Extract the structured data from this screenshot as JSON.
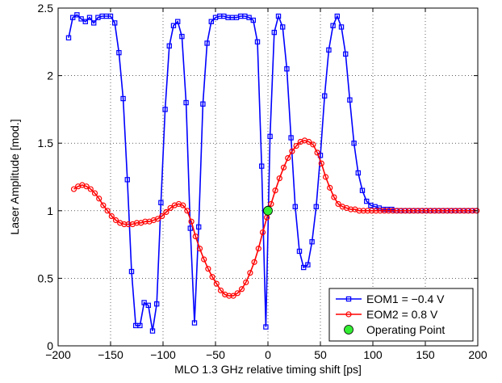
{
  "chart_data": {
    "type": "line",
    "title": "",
    "xlabel": "MLO 1.3 GHz relative timing shift [ps]",
    "ylabel": "Laser Amplitude [mod.]",
    "xlim": [
      -200,
      200
    ],
    "ylim": [
      0,
      2.5
    ],
    "xticks": [
      -200,
      -150,
      -100,
      -50,
      0,
      50,
      100,
      150,
      200
    ],
    "xtick_labels": [
      "−200",
      "−150",
      "−100",
      "−50",
      "0",
      "50",
      "100",
      "150",
      "200"
    ],
    "yticks": [
      0,
      0.5,
      1,
      1.5,
      2,
      2.5
    ],
    "ytick_labels": [
      "0",
      "0.5",
      "1",
      "1.5",
      "2",
      "2.5"
    ],
    "grid": true,
    "legend_position": "bottom-right",
    "series": [
      {
        "name": "EOM1 = −0.4 V",
        "color": "#0000ff",
        "marker": "square",
        "points": [
          [
            -190,
            2.28
          ],
          [
            -186,
            2.43
          ],
          [
            -182,
            2.45
          ],
          [
            -178,
            2.42
          ],
          [
            -174,
            2.4
          ],
          [
            -170,
            2.43
          ],
          [
            -166,
            2.39
          ],
          [
            -162,
            2.43
          ],
          [
            -158,
            2.44
          ],
          [
            -154,
            2.44
          ],
          [
            -150,
            2.44
          ],
          [
            -146,
            2.39
          ],
          [
            -142,
            2.17
          ],
          [
            -138,
            1.83
          ],
          [
            -134,
            1.23
          ],
          [
            -130,
            0.55
          ],
          [
            -126,
            0.15
          ],
          [
            -122,
            0.15
          ],
          [
            -118,
            0.32
          ],
          [
            -114,
            0.3
          ],
          [
            -110,
            0.11
          ],
          [
            -106,
            0.31
          ],
          [
            -102,
            1.06
          ],
          [
            -98,
            1.75
          ],
          [
            -94,
            2.22
          ],
          [
            -90,
            2.37
          ],
          [
            -86,
            2.4
          ],
          [
            -82,
            2.29
          ],
          [
            -78,
            1.8
          ],
          [
            -74,
            0.87
          ],
          [
            -70,
            0.17
          ],
          [
            -66,
            0.88
          ],
          [
            -62,
            1.79
          ],
          [
            -58,
            2.24
          ],
          [
            -54,
            2.4
          ],
          [
            -50,
            2.43
          ],
          [
            -46,
            2.44
          ],
          [
            -42,
            2.44
          ],
          [
            -38,
            2.43
          ],
          [
            -34,
            2.43
          ],
          [
            -30,
            2.43
          ],
          [
            -26,
            2.44
          ],
          [
            -22,
            2.44
          ],
          [
            -18,
            2.43
          ],
          [
            -14,
            2.41
          ],
          [
            -10,
            2.25
          ],
          [
            -6,
            1.33
          ],
          [
            -2,
            0.14
          ],
          [
            2,
            1.55
          ],
          [
            6,
            2.32
          ],
          [
            10,
            2.44
          ],
          [
            14,
            2.36
          ],
          [
            18,
            2.05
          ],
          [
            22,
            1.54
          ],
          [
            26,
            1.03
          ],
          [
            30,
            0.7
          ],
          [
            34,
            0.58
          ],
          [
            38,
            0.6
          ],
          [
            42,
            0.77
          ],
          [
            46,
            1.03
          ],
          [
            50,
            1.41
          ],
          [
            54,
            1.85
          ],
          [
            58,
            2.19
          ],
          [
            62,
            2.37
          ],
          [
            66,
            2.44
          ],
          [
            70,
            2.36
          ],
          [
            74,
            2.16
          ],
          [
            78,
            1.82
          ],
          [
            82,
            1.5
          ],
          [
            86,
            1.28
          ],
          [
            90,
            1.15
          ],
          [
            94,
            1.07
          ],
          [
            98,
            1.04
          ],
          [
            102,
            1.03
          ],
          [
            106,
            1.02
          ],
          [
            110,
            1.01
          ],
          [
            114,
            1.01
          ],
          [
            118,
            1.01
          ],
          [
            122,
            1.0
          ],
          [
            126,
            1.0
          ],
          [
            130,
            1.0
          ],
          [
            134,
            1.0
          ],
          [
            138,
            1.0
          ],
          [
            142,
            1.0
          ],
          [
            146,
            1.0
          ],
          [
            150,
            1.0
          ],
          [
            154,
            1.0
          ],
          [
            158,
            1.0
          ],
          [
            162,
            1.0
          ],
          [
            166,
            1.0
          ],
          [
            170,
            1.0
          ],
          [
            174,
            1.0
          ],
          [
            178,
            1.0
          ],
          [
            182,
            1.0
          ],
          [
            186,
            1.0
          ],
          [
            190,
            1.0
          ],
          [
            194,
            1.0
          ],
          [
            198,
            1.0
          ]
        ]
      },
      {
        "name": "EOM2 = 0.8 V",
        "color": "#ff0000",
        "marker": "circle",
        "points": [
          [
            -185,
            1.16
          ],
          [
            -181,
            1.18
          ],
          [
            -177,
            1.19
          ],
          [
            -173,
            1.18
          ],
          [
            -169,
            1.16
          ],
          [
            -165,
            1.13
          ],
          [
            -161,
            1.09
          ],
          [
            -157,
            1.04
          ],
          [
            -153,
            1.0
          ],
          [
            -149,
            0.96
          ],
          [
            -145,
            0.93
          ],
          [
            -141,
            0.91
          ],
          [
            -137,
            0.9
          ],
          [
            -133,
            0.9
          ],
          [
            -129,
            0.9
          ],
          [
            -125,
            0.91
          ],
          [
            -121,
            0.91
          ],
          [
            -117,
            0.92
          ],
          [
            -113,
            0.92
          ],
          [
            -109,
            0.93
          ],
          [
            -105,
            0.94
          ],
          [
            -101,
            0.96
          ],
          [
            -97,
            0.99
          ],
          [
            -93,
            1.02
          ],
          [
            -89,
            1.04
          ],
          [
            -85,
            1.05
          ],
          [
            -81,
            1.04
          ],
          [
            -77,
            1.0
          ],
          [
            -73,
            0.92
          ],
          [
            -69,
            0.81
          ],
          [
            -65,
            0.72
          ],
          [
            -61,
            0.64
          ],
          [
            -57,
            0.57
          ],
          [
            -53,
            0.51
          ],
          [
            -49,
            0.46
          ],
          [
            -45,
            0.41
          ],
          [
            -41,
            0.38
          ],
          [
            -37,
            0.37
          ],
          [
            -33,
            0.37
          ],
          [
            -29,
            0.39
          ],
          [
            -25,
            0.42
          ],
          [
            -21,
            0.47
          ],
          [
            -17,
            0.54
          ],
          [
            -13,
            0.62
          ],
          [
            -9,
            0.72
          ],
          [
            -5,
            0.84
          ],
          [
            -1,
            0.95
          ],
          [
            3,
            1.05
          ],
          [
            7,
            1.15
          ],
          [
            11,
            1.24
          ],
          [
            15,
            1.32
          ],
          [
            19,
            1.39
          ],
          [
            23,
            1.44
          ],
          [
            27,
            1.48
          ],
          [
            31,
            1.51
          ],
          [
            35,
            1.52
          ],
          [
            39,
            1.51
          ],
          [
            43,
            1.49
          ],
          [
            47,
            1.43
          ],
          [
            51,
            1.35
          ],
          [
            55,
            1.25
          ],
          [
            59,
            1.17
          ],
          [
            63,
            1.1
          ],
          [
            67,
            1.05
          ],
          [
            71,
            1.03
          ],
          [
            75,
            1.02
          ],
          [
            79,
            1.01
          ],
          [
            83,
            1.01
          ],
          [
            87,
            1.0
          ],
          [
            91,
            1.0
          ],
          [
            95,
            1.0
          ],
          [
            99,
            1.0
          ],
          [
            103,
            1.0
          ],
          [
            107,
            1.0
          ],
          [
            111,
            1.0
          ],
          [
            115,
            1.0
          ],
          [
            119,
            1.0
          ],
          [
            123,
            1.0
          ],
          [
            127,
            1.0
          ],
          [
            131,
            1.0
          ],
          [
            135,
            1.0
          ],
          [
            139,
            1.0
          ],
          [
            143,
            1.0
          ],
          [
            147,
            1.0
          ],
          [
            151,
            1.0
          ],
          [
            155,
            1.0
          ],
          [
            159,
            1.0
          ],
          [
            163,
            1.0
          ],
          [
            167,
            1.0
          ],
          [
            171,
            1.0
          ],
          [
            175,
            1.0
          ],
          [
            179,
            1.0
          ],
          [
            183,
            1.0
          ],
          [
            187,
            1.0
          ],
          [
            191,
            1.0
          ],
          [
            195,
            1.0
          ],
          [
            199,
            1.0
          ]
        ]
      }
    ],
    "annotations": [
      {
        "name": "Operating Point",
        "x": 0,
        "y": 1.0,
        "color": "#33ee33",
        "marker": "filled-circle"
      }
    ]
  }
}
